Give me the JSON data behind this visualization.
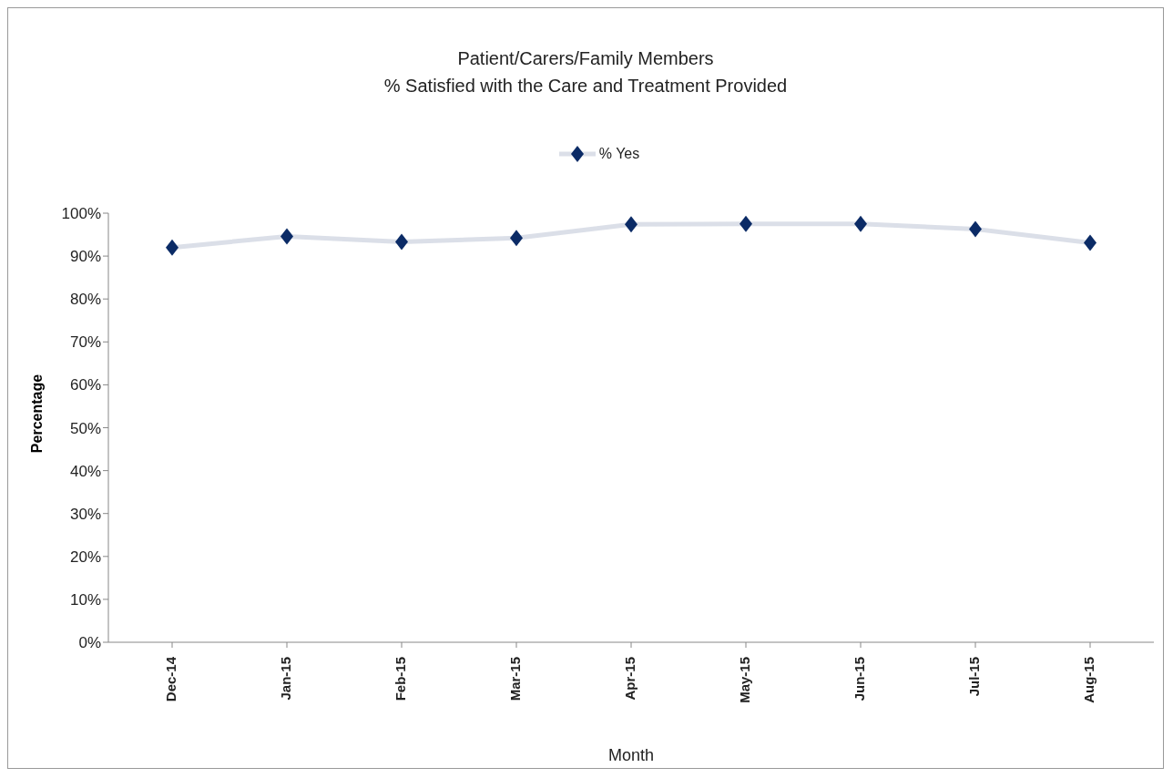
{
  "chart_data": {
    "type": "line",
    "title": "Patient/Carers/Family Members",
    "subtitle": "% Satisfied with the Care and Treatment Provided",
    "xlabel": "Month",
    "ylabel": "Percentage",
    "categories": [
      "Dec-14",
      "Jan-15",
      "Feb-15",
      "Mar-15",
      "Apr-15",
      "May-15",
      "Jun-15",
      "Jul-15",
      "Aug-15"
    ],
    "series": [
      {
        "name": "% Yes",
        "color": "#0b2b66",
        "values": [
          92,
          94.6,
          93.3,
          94.2,
          97.4,
          97.5,
          97.5,
          96.3,
          93.1
        ]
      }
    ],
    "ylim": [
      0,
      100
    ],
    "yticks": [
      {
        "value": 0,
        "label": "0%"
      },
      {
        "value": 10,
        "label": "10%"
      },
      {
        "value": 20,
        "label": "20%"
      },
      {
        "value": 30,
        "label": "30%"
      },
      {
        "value": 40,
        "label": "40%"
      },
      {
        "value": 50,
        "label": "50%"
      },
      {
        "value": 60,
        "label": "60%"
      },
      {
        "value": 70,
        "label": "70%"
      },
      {
        "value": 80,
        "label": "80%"
      },
      {
        "value": 90,
        "label": "90%"
      },
      {
        "value": 100,
        "label": "100%"
      }
    ],
    "marker": "diamond",
    "legend": "top",
    "grid": false
  }
}
